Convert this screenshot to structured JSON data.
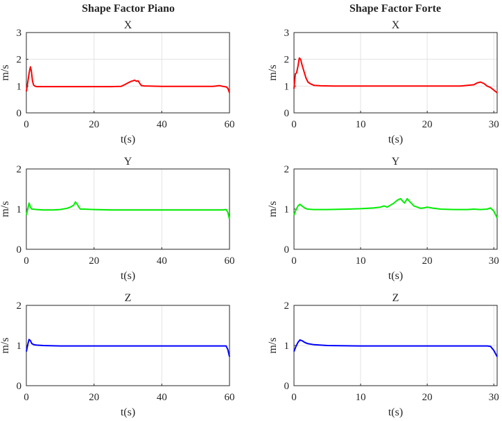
{
  "column_titles": [
    "Shape Factor Piano",
    "Shape Factor Forte"
  ],
  "chart_data": [
    {
      "type": "line",
      "column": 0,
      "row": 0,
      "title": "X",
      "xlabel": "t(s)",
      "ylabel": "m/s",
      "xlim": [
        0,
        60
      ],
      "ylim": [
        0,
        3
      ],
      "xticks": [
        0,
        20,
        40,
        60
      ],
      "yticks": [
        0,
        1,
        2,
        3
      ],
      "grid": true,
      "color": "#ff0000",
      "series": [
        {
          "x": [
            0,
            0.3,
            0.6,
            0.9,
            1.2,
            1.5,
            1.8,
            2.1,
            2.5,
            3,
            4,
            6,
            10,
            15,
            20,
            25,
            28,
            29,
            30,
            31,
            32,
            32.5,
            33,
            33.5,
            34,
            35,
            36,
            40,
            45,
            50,
            55,
            56,
            57,
            58,
            59,
            59.5,
            60
          ],
          "y": [
            0.8,
            1.05,
            1.3,
            1.55,
            1.72,
            1.55,
            1.2,
            1.05,
            1.0,
            0.98,
            0.98,
            0.98,
            0.98,
            0.98,
            0.98,
            0.98,
            0.99,
            1.05,
            1.12,
            1.18,
            1.22,
            1.18,
            1.2,
            1.1,
            1.02,
            1.0,
            1.0,
            0.99,
            0.99,
            0.99,
            0.99,
            1.0,
            1.02,
            0.99,
            0.97,
            0.92,
            0.75
          ]
        }
      ]
    },
    {
      "type": "line",
      "column": 1,
      "row": 0,
      "title": "X",
      "xlabel": "t(s)",
      "ylabel": "m/s",
      "xlim": [
        0,
        30.5
      ],
      "ylim": [
        0,
        3
      ],
      "xticks": [
        0,
        10,
        20,
        30
      ],
      "yticks": [
        0,
        1,
        2,
        3
      ],
      "grid": true,
      "color": "#ff0000",
      "series": [
        {
          "x": [
            0,
            0.2,
            0.4,
            0.6,
            0.8,
            1.0,
            1.2,
            1.5,
            1.8,
            2.1,
            2.5,
            3,
            4,
            6,
            10,
            15,
            20,
            25,
            27,
            27.5,
            28,
            28.5,
            29,
            29.5,
            30,
            30.5
          ],
          "y": [
            0.9,
            1.45,
            1.5,
            1.75,
            2.05,
            2.0,
            1.8,
            1.55,
            1.3,
            1.15,
            1.08,
            1.03,
            1.01,
            1.0,
            1.0,
            1.0,
            1.0,
            1.0,
            1.05,
            1.12,
            1.15,
            1.1,
            1.0,
            0.95,
            0.85,
            0.75
          ]
        }
      ]
    },
    {
      "type": "line",
      "column": 0,
      "row": 1,
      "title": "Y",
      "xlabel": "t(s)",
      "ylabel": "m/s",
      "xlim": [
        0,
        60
      ],
      "ylim": [
        0,
        2
      ],
      "xticks": [
        0,
        20,
        40,
        60
      ],
      "yticks": [
        0,
        1,
        2
      ],
      "grid": true,
      "color": "#00ee00",
      "series": [
        {
          "x": [
            0,
            0.4,
            0.8,
            1.2,
            1.6,
            2,
            3,
            5,
            8,
            10,
            12,
            13,
            14,
            14.5,
            15,
            15.5,
            16,
            17,
            20,
            25,
            30,
            40,
            50,
            55,
            58,
            59,
            59.5,
            60
          ],
          "y": [
            0.85,
            1.0,
            1.15,
            1.05,
            1.0,
            1.0,
            0.99,
            0.98,
            0.98,
            0.99,
            1.02,
            1.05,
            1.1,
            1.18,
            1.12,
            1.05,
            1.0,
            1.0,
            0.99,
            0.98,
            0.98,
            0.98,
            0.98,
            0.98,
            0.98,
            0.99,
            0.92,
            0.75
          ]
        }
      ]
    },
    {
      "type": "line",
      "column": 1,
      "row": 1,
      "title": "Y",
      "xlabel": "t(s)",
      "ylabel": "m/s",
      "xlim": [
        0,
        30.5
      ],
      "ylim": [
        0,
        2
      ],
      "xticks": [
        0,
        10,
        20,
        30
      ],
      "yticks": [
        0,
        1,
        2
      ],
      "grid": true,
      "color": "#00ee00",
      "series": [
        {
          "x": [
            0,
            0.3,
            0.6,
            0.9,
            1.2,
            1.6,
            2,
            3,
            5,
            8,
            10,
            12,
            13,
            13.5,
            14,
            14.5,
            15,
            15.5,
            16,
            16.3,
            16.6,
            17,
            17.3,
            17.6,
            18,
            18.5,
            19,
            19.5,
            20,
            21,
            22,
            24,
            26,
            27,
            28,
            29,
            29.5,
            30,
            30.5
          ],
          "y": [
            0.85,
            0.98,
            1.08,
            1.12,
            1.08,
            1.03,
            1.0,
            0.99,
            0.99,
            1.0,
            1.01,
            1.03,
            1.05,
            1.08,
            1.05,
            1.1,
            1.15,
            1.22,
            1.26,
            1.2,
            1.15,
            1.26,
            1.2,
            1.15,
            1.08,
            1.05,
            1.02,
            1.03,
            1.05,
            1.02,
            1.0,
            0.99,
            0.99,
            1.0,
            0.99,
            1.0,
            1.03,
            0.95,
            0.78
          ]
        }
      ]
    },
    {
      "type": "line",
      "column": 0,
      "row": 2,
      "title": "Z",
      "xlabel": "t(s)",
      "ylabel": "m/s",
      "xlim": [
        0,
        60
      ],
      "ylim": [
        0,
        2
      ],
      "xticks": [
        0,
        20,
        40,
        60
      ],
      "yticks": [
        0,
        1,
        2
      ],
      "grid": true,
      "color": "#0000ff",
      "series": [
        {
          "x": [
            0,
            0.4,
            0.8,
            1.2,
            1.6,
            2.2,
            3,
            5,
            10,
            20,
            30,
            40,
            50,
            58,
            59,
            59.5,
            60
          ],
          "y": [
            0.85,
            1.02,
            1.15,
            1.12,
            1.05,
            1.02,
            1.01,
            1.0,
            0.99,
            0.99,
            0.99,
            0.99,
            0.99,
            0.99,
            0.99,
            0.9,
            0.72
          ]
        }
      ]
    },
    {
      "type": "line",
      "column": 1,
      "row": 2,
      "title": "Z",
      "xlabel": "t(s)",
      "ylabel": "m/s",
      "xlim": [
        0,
        30.5
      ],
      "ylim": [
        0,
        2
      ],
      "xticks": [
        0,
        10,
        20,
        30
      ],
      "yticks": [
        0,
        1,
        2
      ],
      "grid": true,
      "color": "#0000ff",
      "series": [
        {
          "x": [
            0,
            0.3,
            0.6,
            0.9,
            1.2,
            1.6,
            2,
            3,
            5,
            10,
            20,
            25,
            28,
            29,
            29.5,
            30,
            30.5
          ],
          "y": [
            0.85,
            0.98,
            1.08,
            1.14,
            1.12,
            1.08,
            1.05,
            1.02,
            1.0,
            0.99,
            0.99,
            0.99,
            0.99,
            0.99,
            0.98,
            0.88,
            0.72
          ]
        }
      ]
    }
  ]
}
